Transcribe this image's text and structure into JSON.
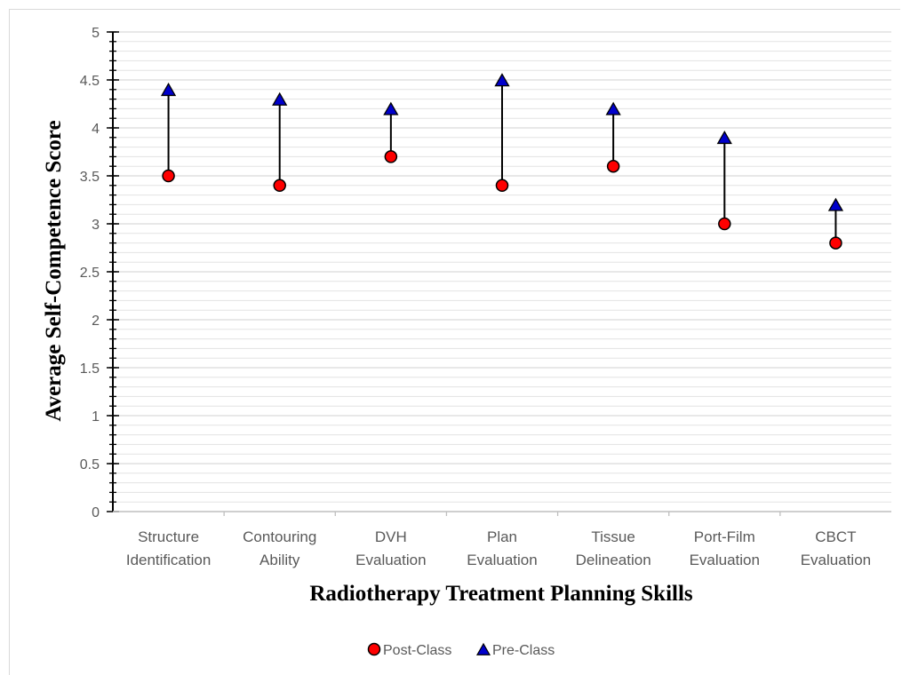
{
  "chart_data": {
    "type": "dot-range",
    "title": "",
    "xlabel": "Radiotherapy Treatment Planning Skills",
    "ylabel": "Average Self-Competence Score",
    "categories": [
      [
        "Structure",
        "Identification"
      ],
      [
        "Contouring",
        "Ability"
      ],
      [
        "DVH",
        "Evaluation"
      ],
      [
        "Plan",
        "Evaluation"
      ],
      [
        "Tissue",
        "Delineation"
      ],
      [
        "Port-Film",
        "Evaluation"
      ],
      [
        "CBCT",
        "Evaluation"
      ]
    ],
    "series": [
      {
        "name": "Post-Class",
        "marker": "circle",
        "color": "#ff0000",
        "values": [
          3.5,
          3.4,
          3.7,
          3.4,
          3.6,
          3.0,
          2.8
        ]
      },
      {
        "name": "Pre-Class",
        "marker": "triangle",
        "color": "#0000cc",
        "values": [
          4.4,
          4.3,
          4.2,
          4.5,
          4.2,
          3.9,
          3.2
        ]
      }
    ],
    "ylim": [
      0,
      5
    ],
    "yticks": [
      "0",
      "0.5",
      "1",
      "1.5",
      "2",
      "2.5",
      "3",
      "3.5",
      "4",
      "4.5",
      "5"
    ],
    "ytick_step": 0.5,
    "minor_step": 0.1,
    "grid": true,
    "legend": "bottom",
    "connector_color": "#000000"
  }
}
